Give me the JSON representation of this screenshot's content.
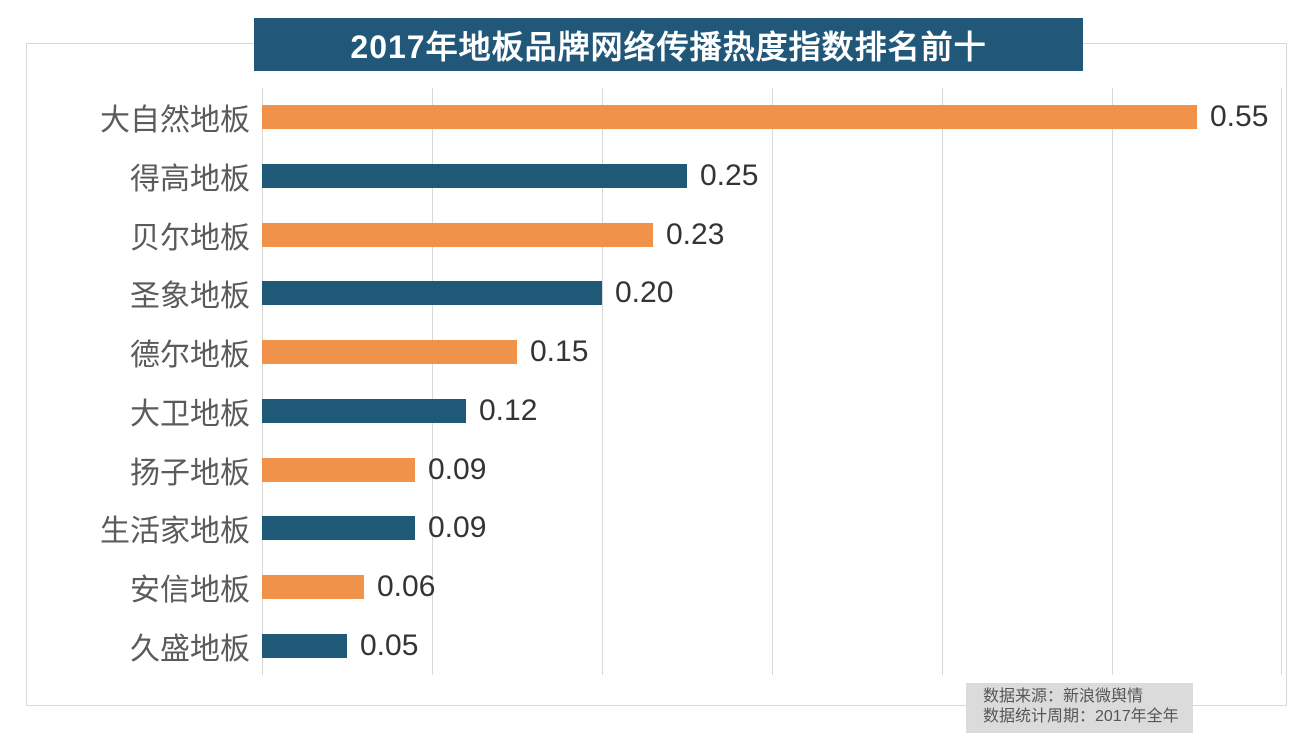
{
  "chart_data": {
    "type": "bar",
    "orientation": "horizontal",
    "title": "2017年地板品牌网络传播热度指数排名前十",
    "categories": [
      "大自然地板",
      "得高地板",
      "贝尔地板",
      "圣象地板",
      "德尔地板",
      "大卫地板",
      "扬子地板",
      "生活家地板",
      "安信地板",
      "久盛地板"
    ],
    "values": [
      0.55,
      0.25,
      0.23,
      0.2,
      0.15,
      0.12,
      0.09,
      0.09,
      0.06,
      0.05
    ],
    "value_labels": [
      "0.55",
      "0.25",
      "0.23",
      "0.20",
      "0.15",
      "0.12",
      "0.09",
      "0.09",
      "0.06",
      "0.05"
    ],
    "xlabel": "",
    "ylabel": "",
    "xlim": [
      0,
      0.6
    ],
    "grid_step": 0.1,
    "grid": "vertical-only",
    "legend": "none",
    "palette_alternating": [
      "#F0924A",
      "#1E5A78"
    ],
    "title_bg_color": "#21587A",
    "title_text_color": "#FFFFFF",
    "gridline_color": "#D9D9D9",
    "category_label_color": "#5B5B5B",
    "value_label_color": "#343434"
  },
  "footer": {
    "source_line": "数据来源：新浪微舆情",
    "period_line": "数据统计周期：2017年全年",
    "bg_color": "#DBDBDB"
  }
}
